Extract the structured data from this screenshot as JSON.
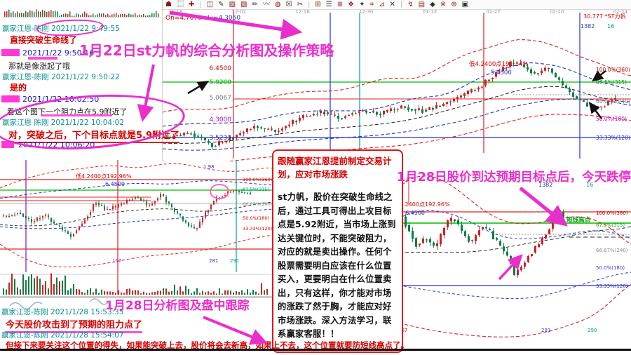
{
  "toolbar": {
    "icons": [
      "☗",
      "⿴",
      "✚",
      "◫",
      "✎",
      "▨",
      "▧",
      "✏",
      "〰",
      "◍",
      "☒",
      "✂",
      "⊞",
      "☰",
      "≣",
      "❖",
      "✦",
      "⌗",
      "⊿",
      "✕",
      "↯",
      "▤",
      "◆",
      "※",
      "⊕",
      "▣"
    ]
  },
  "chat_top": {
    "m1_name": "赢家江恩-陈刚 2021/1/22 9:49:55",
    "m1_text": "直接突破生命线了",
    "m2_time": "2021/1/22 9:50:16",
    "m2_text": "那就是像涨起了哦",
    "m3_name": "赢家江恩-陈刚 2021/1/22 9:50:22",
    "m3_text": "是的",
    "m4_time": "2021/1/22 10:02:50",
    "m4_text": "看这个图下一个阻力点在5.9附近了",
    "m5_name": "赢家江恩 陈刚 2021/1/22 10:04:02",
    "m5_text": "对，突破之后，下个目标点就是5.9附近了",
    "m6_time": "2021/1/22 10:06:20"
  },
  "annotations": {
    "h1": "1月22日st力帆的综合分析图及操作策略",
    "h2": "1月28日股价到达预期目标点后，今天跌停。",
    "h3": "1月28日分析图及盘中跟踪"
  },
  "charts": {
    "gann": [
      "100.0%(360)",
      "87.5%(315)",
      "66.67%(240)",
      "50.0%(180)",
      "33.33%(120)"
    ],
    "top": {
      "info_open": "On=4.7070",
      "info_low": "L:=4.3050",
      "dates": [
        "11-18",
        "12-02",
        "12-16",
        "12-30",
        "01-13",
        "01-27",
        "02-10",
        "02-24"
      ],
      "prices": [
        "6.4500",
        "5.9200",
        "5.0067",
        "4.3000",
        "3.5233"
      ],
      "anno_point": "低4.2400点191.14%",
      "anno_price": "5.4500",
      "symbol": "30.777 *ST力帆",
      "v1": "1382",
      "v2": "16"
    },
    "mid": {
      "anno_point": "低4.2400点192.96%",
      "anno_price": "6.4500",
      "extra": "1.98",
      "b1": "167",
      "b2": "281",
      "b3": "291"
    },
    "bot": {
      "anno_point": "低4.2400点192.96%",
      "anno_price": "6.4500",
      "short_high": "短线高点",
      "v1": "1382",
      "v2": "16",
      "b1": "167",
      "b2": "281",
      "b3": "290"
    }
  },
  "red_box": {
    "title": "跟随赢家江恩提前制定交易计划，应对市场涨跌",
    "body": "st力帆，股价在突破生命线之后，通过工具可得出上攻目标点是5.92附近，当市场上涨到达关键位时，不能突破阻力，对应的就是卖出操作。任何个股票需要明白应该在什么位置买入，更要明白在什么位置卖出，只有这样，你才能对市场的涨跌了然于胸，才能应对好市场涨跌。深入方法学习，联系赢家客服！！"
  },
  "chat_bottom": {
    "n1": "赢家江恩-陈刚 2021/1/28 15:53:35",
    "t1": "今天股价攻击到了预期的阻力点了",
    "n2": "赢家江恩-陈刚 2021/1/28 15:54:07",
    "t2": "但接下来要关注这个位置的得失，如果能突破上去，股价将会去新高，如果上不去，这个位置就要防短线高点了。"
  },
  "colors": {
    "magenta": "#ea2ecb",
    "red": "#d60000",
    "candle_up": "#cc2222",
    "candle_down": "#0b7d41",
    "green_line": "#00bb00",
    "teal_name": "#0a8f8f",
    "blue": "#2233cc"
  }
}
